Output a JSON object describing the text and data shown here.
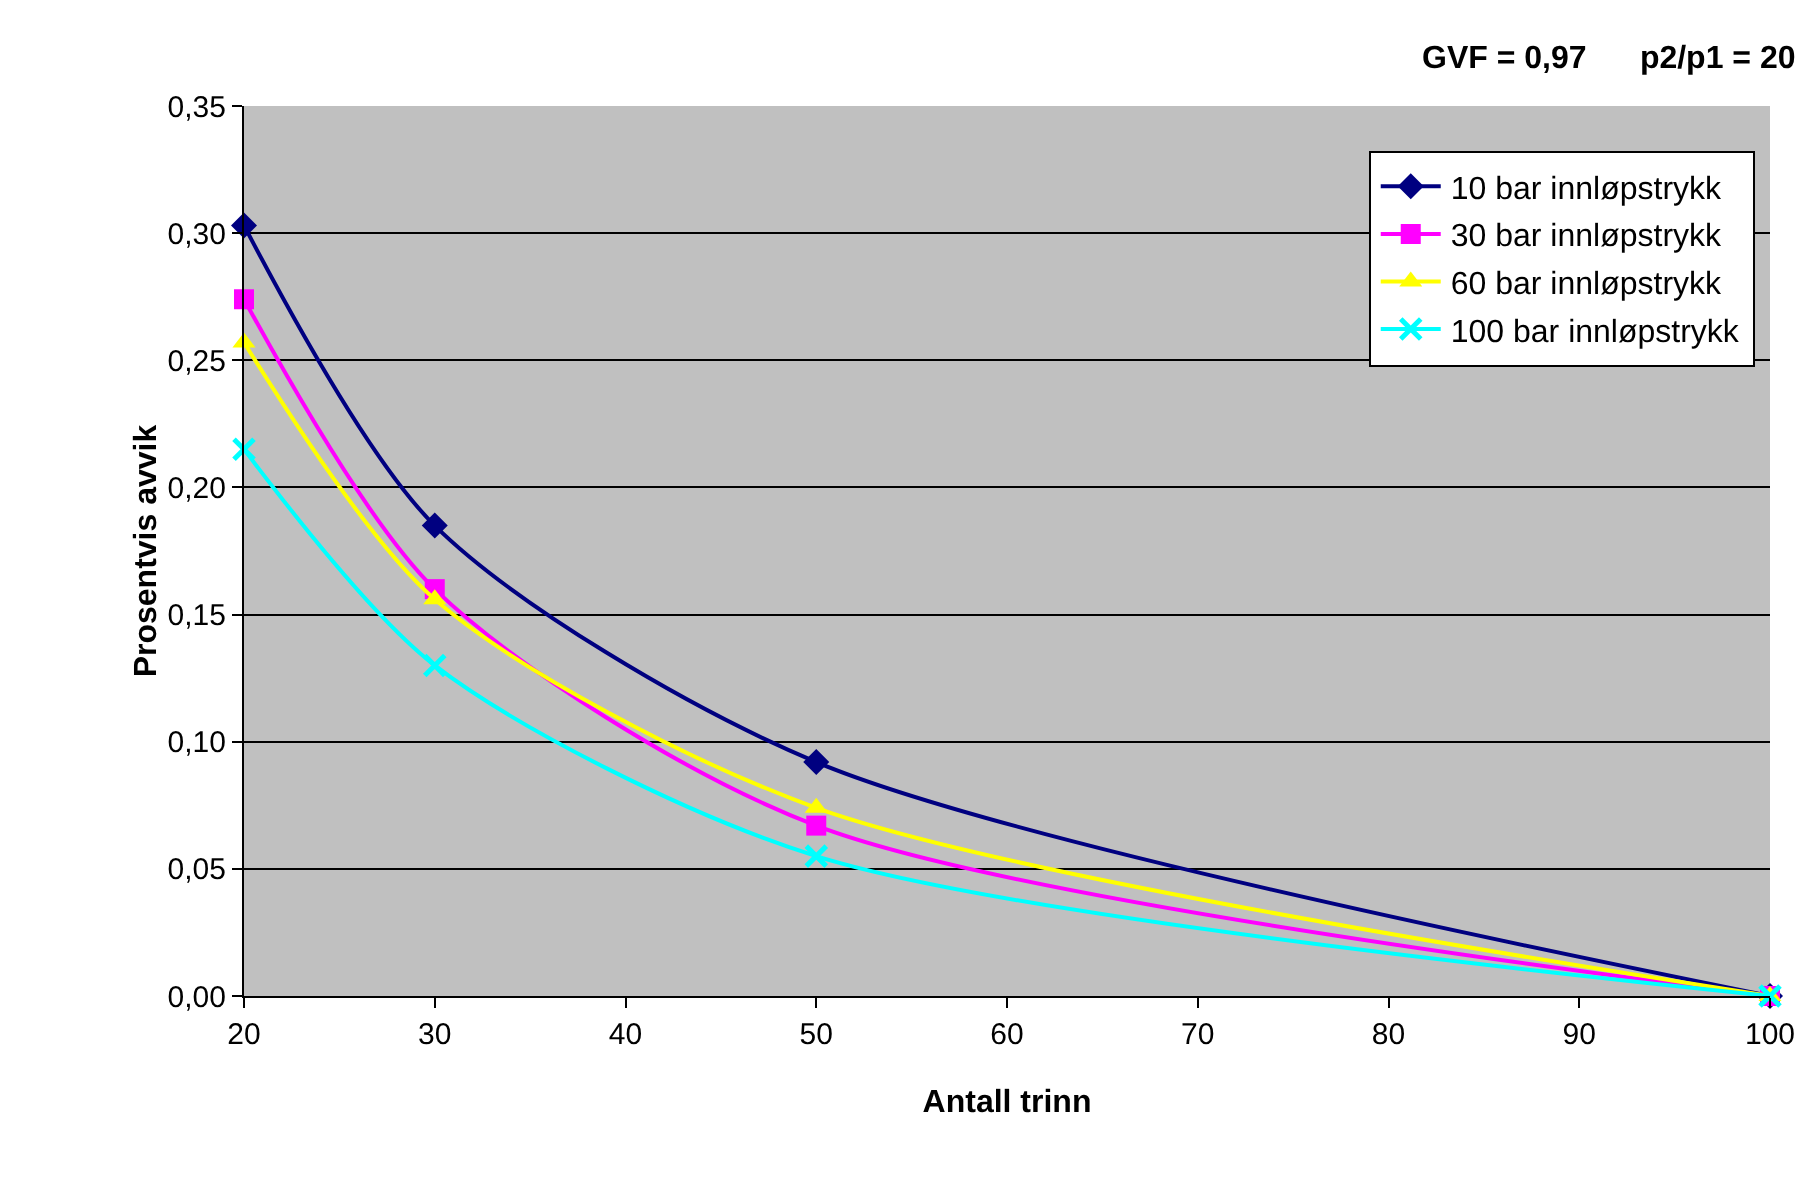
{
  "chart_data": {
    "type": "line",
    "xlabel": "Antall trinn",
    "ylabel": "Prosentvis avvik",
    "annotations": [
      "GVF = 0,97      p2/p1 = 20"
    ],
    "x": [
      20,
      30,
      50,
      100
    ],
    "series": [
      {
        "name": "10 bar innløpstrykk",
        "color": "#000080",
        "marker": "diamond",
        "values": [
          0.303,
          0.185,
          0.092,
          0
        ]
      },
      {
        "name": "30 bar innløpstrykk",
        "color": "#ff00ff",
        "marker": "square",
        "values": [
          0.274,
          0.16,
          0.067,
          0
        ]
      },
      {
        "name": "60 bar innløpstrykk",
        "color": "#ffff00",
        "marker": "triangle",
        "values": [
          0.257,
          0.156,
          0.074,
          0
        ]
      },
      {
        "name": "100 bar innløpstrykk",
        "color": "#00ffff",
        "marker": "cross",
        "values": [
          0.215,
          0.13,
          0.055,
          0
        ]
      }
    ],
    "xlim": [
      20,
      100
    ],
    "xticks": [
      20,
      30,
      40,
      50,
      60,
      70,
      80,
      90,
      100
    ],
    "ylim": [
      0,
      0.35
    ],
    "yticks": [
      {
        "value": 0,
        "label": "0,00"
      },
      {
        "value": 0.05,
        "label": "0,05"
      },
      {
        "value": 0.1,
        "label": "0,10"
      },
      {
        "value": 0.15,
        "label": "0,15"
      },
      {
        "value": 0.2,
        "label": "0,20"
      },
      {
        "value": 0.25,
        "label": "0,25"
      },
      {
        "value": 0.3,
        "label": "0,30"
      },
      {
        "value": 0.35,
        "label": "0,35"
      }
    ],
    "grid": "y",
    "legend": "top right",
    "line_style": "solid"
  }
}
